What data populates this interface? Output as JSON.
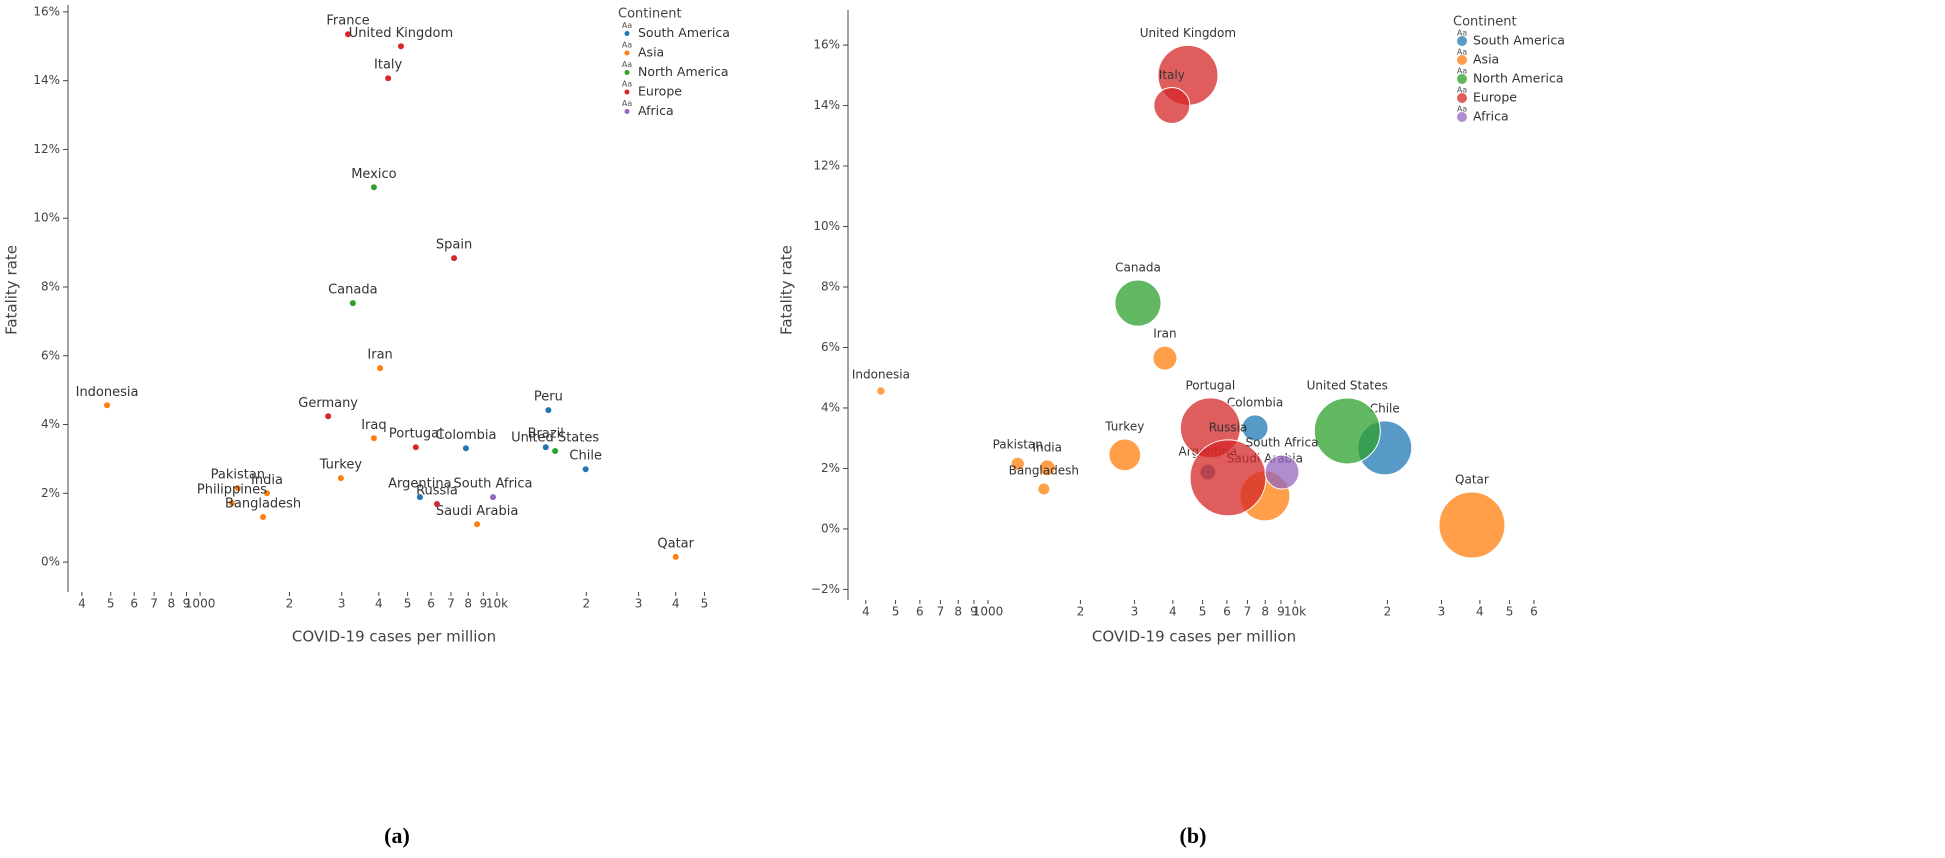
{
  "chart_data": [
    {
      "type": "scatter",
      "caption": "(a)",
      "xlabel": "COVID-19 cases per million",
      "ylabel": "Fatality rate",
      "xscale": "log",
      "xlim": [
        359,
        56400
      ],
      "ylim": [
        -0.87,
        16.2
      ],
      "xticks": [
        {
          "value": 400,
          "label": "4"
        },
        {
          "value": 500,
          "label": "5"
        },
        {
          "value": 600,
          "label": "6"
        },
        {
          "value": 700,
          "label": "7"
        },
        {
          "value": 800,
          "label": "8"
        },
        {
          "value": 900,
          "label": "9"
        },
        1000,
        {
          "value": 2000,
          "label": "2"
        },
        {
          "value": 3000,
          "label": "3"
        },
        {
          "value": 4000,
          "label": "4"
        },
        {
          "value": 5000,
          "label": "5"
        },
        {
          "value": 6000,
          "label": "6"
        },
        {
          "value": 7000,
          "label": "7"
        },
        {
          "value": 8000,
          "label": "8"
        },
        {
          "value": 9000,
          "label": "9"
        },
        {
          "value": 10000,
          "label": "10k"
        },
        {
          "value": 20000,
          "label": "2"
        },
        {
          "value": 30000,
          "label": "3"
        },
        {
          "value": 40000,
          "label": "4"
        },
        {
          "value": 50000,
          "label": "5"
        }
      ],
      "yticks": [
        {
          "value": 0,
          "label": "0%"
        },
        {
          "value": 2,
          "label": "2%"
        },
        {
          "value": 4,
          "label": "4%"
        },
        {
          "value": 6,
          "label": "6%"
        },
        {
          "value": 8,
          "label": "8%"
        },
        {
          "value": 10,
          "label": "10%"
        },
        {
          "value": 12,
          "label": "12%"
        },
        {
          "value": 14,
          "label": "14%"
        },
        {
          "value": 16,
          "label": "16%"
        }
      ],
      "legend_title": "Continent",
      "legend_symbol": "Aa",
      "legend_position": "upper right",
      "series": [
        {
          "name": "South America",
          "color": "#1f77b4",
          "labels": [
            "Peru",
            "Colombia",
            "Brazil",
            "Chile",
            "Argentina"
          ],
          "x": [
            14900,
            7860,
            14600,
            19900,
            5500
          ],
          "values": [
            4.42,
            3.31,
            3.34,
            2.7,
            1.89
          ]
        },
        {
          "name": "Asia",
          "color": "#ff7f0e",
          "labels": [
            "Iran",
            "Indonesia",
            "Iraq",
            "Pakistan",
            "India",
            "Philippines",
            "Turkey",
            "Bangladesh",
            "Saudi Arabia",
            "Qatar"
          ],
          "x": [
            4040,
            486,
            3850,
            1340,
            1680,
            1280,
            2980,
            1630,
            8570,
            40000
          ],
          "values": [
            5.64,
            4.56,
            3.6,
            2.15,
            2.0,
            1.72,
            2.44,
            1.31,
            1.1,
            0.15
          ]
        },
        {
          "name": "North America",
          "color": "#2ca02c",
          "labels": [
            "Mexico",
            "Canada",
            "United States"
          ],
          "x": [
            3850,
            3270,
            15700
          ],
          "values": [
            10.9,
            7.53,
            3.23
          ]
        },
        {
          "name": "Europe",
          "color": "#d62728",
          "labels": [
            "France",
            "United Kingdom",
            "Italy",
            "Spain",
            "Germany",
            "Portugal",
            "Russia"
          ],
          "x": [
            3150,
            4750,
            4300,
            7170,
            2700,
            5330,
            6280
          ],
          "values": [
            15.35,
            15.0,
            14.07,
            8.84,
            4.24,
            3.34,
            1.69
          ]
        },
        {
          "name": "Africa",
          "color": "#9467bd",
          "labels": [
            "South Africa"
          ],
          "x": [
            9700
          ],
          "values": [
            1.89
          ]
        }
      ]
    },
    {
      "type": "bubble",
      "caption": "(b)",
      "xlabel": "COVID-19 cases per million",
      "ylabel": "Fatality rate",
      "xscale": "log",
      "xlim": [
        350,
        62800
      ],
      "ylim": [
        -2.35,
        17.16
      ],
      "xticks": [
        {
          "value": 400,
          "label": "4"
        },
        {
          "value": 500,
          "label": "5"
        },
        {
          "value": 600,
          "label": "6"
        },
        {
          "value": 700,
          "label": "7"
        },
        {
          "value": 800,
          "label": "8"
        },
        {
          "value": 900,
          "label": "9"
        },
        1000,
        {
          "value": 2000,
          "label": "2"
        },
        {
          "value": 3000,
          "label": "3"
        },
        {
          "value": 4000,
          "label": "4"
        },
        {
          "value": 5000,
          "label": "5"
        },
        {
          "value": 6000,
          "label": "6"
        },
        {
          "value": 7000,
          "label": "7"
        },
        {
          "value": 8000,
          "label": "8"
        },
        {
          "value": 9000,
          "label": "9"
        },
        {
          "value": 10000,
          "label": "10k"
        },
        {
          "value": 20000,
          "label": "2"
        },
        {
          "value": 30000,
          "label": "3"
        },
        {
          "value": 40000,
          "label": "4"
        },
        {
          "value": 50000,
          "label": "5"
        },
        {
          "value": 60000,
          "label": "6"
        }
      ],
      "yticks": [
        {
          "value": -2,
          "label": "−2%"
        },
        {
          "value": 0,
          "label": "0%"
        },
        {
          "value": 2,
          "label": "2%"
        },
        {
          "value": 4,
          "label": "4%"
        },
        {
          "value": 6,
          "label": "6%"
        },
        {
          "value": 8,
          "label": "8%"
        },
        {
          "value": 10,
          "label": "10%"
        },
        {
          "value": 12,
          "label": "12%"
        },
        {
          "value": 14,
          "label": "14%"
        },
        {
          "value": 16,
          "label": "16%"
        }
      ],
      "legend_title": "Continent",
      "legend_symbol": "Aa",
      "legend_position": "upper right",
      "series": [
        {
          "name": "South America",
          "color": "#1f77b4",
          "labels": [
            "Colombia",
            "Chile",
            "Argentina"
          ],
          "x": [
            7410,
            19600,
            5200
          ],
          "values": [
            3.34,
            2.68,
            1.88
          ],
          "sizes": [
            19,
            81,
            7
          ]
        },
        {
          "name": "Asia",
          "color": "#ff7f0e",
          "labels": [
            "Iran",
            "Indonesia",
            "Turkey",
            "Pakistan",
            "India",
            "Bangladesh",
            "Saudi Arabia",
            "Qatar"
          ],
          "x": [
            3770,
            448,
            2790,
            1250,
            1560,
            1520,
            7980,
            37700
          ],
          "values": [
            5.65,
            4.56,
            2.45,
            2.15,
            2.02,
            1.32,
            1.09,
            0.13
          ],
          "sizes": [
            16,
            2,
            28,
            5,
            7,
            4,
            69,
            121
          ]
        },
        {
          "name": "North America",
          "color": "#2ca02c",
          "labels": [
            "Canada",
            "United States"
          ],
          "x": [
            3080,
            14800
          ],
          "values": [
            7.47,
            3.24
          ],
          "sizes": [
            59,
            121
          ]
        },
        {
          "name": "Europe",
          "color": "#d62728",
          "labels": [
            "United Kingdom",
            "Italy",
            "Portugal",
            "Russia"
          ],
          "x": [
            4480,
            3970,
            5300,
            6050
          ],
          "values": [
            15.0,
            14.0,
            3.34,
            1.69
          ],
          "sizes": [
            100,
            36,
            100,
            160
          ]
        },
        {
          "name": "Africa",
          "color": "#9467bd",
          "labels": [
            "South Africa"
          ],
          "x": [
            9070
          ],
          "values": [
            1.88
          ],
          "sizes": [
            32
          ]
        }
      ]
    }
  ]
}
